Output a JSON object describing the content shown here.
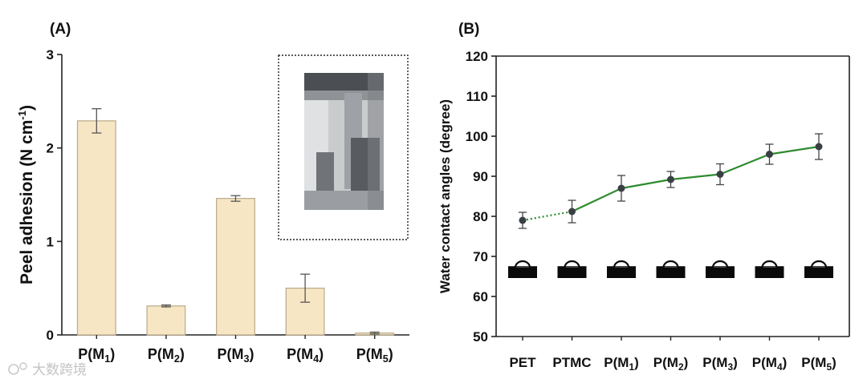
{
  "chart_data": [
    {
      "panel": "(A)",
      "type": "bar",
      "categories": [
        {
          "base": "P(M",
          "sub": "1",
          "close": ")"
        },
        {
          "base": "P(M",
          "sub": "2",
          "close": ")"
        },
        {
          "base": "P(M",
          "sub": "3",
          "close": ")"
        },
        {
          "base": "P(M",
          "sub": "4",
          "close": ")"
        },
        {
          "base": "P(M",
          "sub": "5",
          "close": ")"
        }
      ],
      "values": [
        2.29,
        0.31,
        1.46,
        0.5,
        0.02
      ],
      "errors": [
        0.13,
        0.01,
        0.03,
        0.15,
        0.01
      ],
      "ylabel": {
        "text": "Peel adhesion (N cm",
        "sup": "-1",
        "close": ")"
      },
      "ylim": [
        0,
        3
      ],
      "yticks": [
        0,
        1,
        2,
        3
      ],
      "bar_color": "#f7e6c4",
      "bar_edge": "#b9a98a",
      "inset": {
        "description_name": "peel-test-photo-inset"
      }
    },
    {
      "panel": "(B)",
      "type": "line",
      "categories": [
        {
          "base": "PET",
          "sub": "",
          "close": ""
        },
        {
          "base": "PTMC",
          "sub": "",
          "close": ""
        },
        {
          "base": "P(M",
          "sub": "1",
          "close": ")"
        },
        {
          "base": "P(M",
          "sub": "2",
          "close": ")"
        },
        {
          "base": "P(M",
          "sub": "3",
          "close": ")"
        },
        {
          "base": "P(M",
          "sub": "4",
          "close": ")"
        },
        {
          "base": "P(M",
          "sub": "5",
          "close": ")"
        }
      ],
      "values": [
        79.0,
        81.2,
        87.0,
        89.2,
        90.5,
        95.5,
        97.4
      ],
      "errors": [
        2.0,
        2.8,
        3.2,
        2.0,
        2.6,
        2.5,
        3.2
      ],
      "ylabel": "Water contact angles (degree)",
      "ylim": [
        50,
        120
      ],
      "yticks": [
        50,
        60,
        70,
        80,
        90,
        100,
        110,
        120
      ],
      "line_color": "#2e8b2e",
      "marker_color": "#3a3f44",
      "dotted_first_segment": true
    }
  ],
  "watermark": "大数跨境"
}
